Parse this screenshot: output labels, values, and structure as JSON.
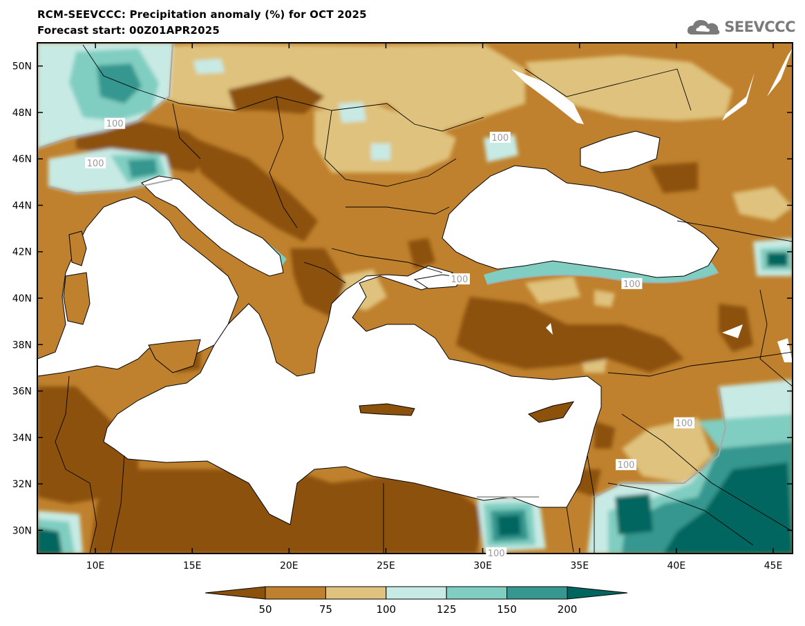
{
  "header": {
    "title_line1": "RCM-SEEVCCC: Precipitation anomaly (%) for OCT 2025",
    "title_line2": "Forecast start: 00Z01APR2025"
  },
  "logo": {
    "text": "SEEVCCC",
    "icon": "cloud-icon",
    "color": "#7a7a7a"
  },
  "map": {
    "lon_range": [
      7,
      46
    ],
    "lat_range": [
      29,
      51
    ],
    "lon_ticks": [
      {
        "value": 10,
        "label": "10E"
      },
      {
        "value": 15,
        "label": "15E"
      },
      {
        "value": 20,
        "label": "20E"
      },
      {
        "value": 25,
        "label": "25E"
      },
      {
        "value": 30,
        "label": "30E"
      },
      {
        "value": 35,
        "label": "35E"
      },
      {
        "value": 40,
        "label": "40E"
      },
      {
        "value": 45,
        "label": "45E"
      }
    ],
    "lat_ticks": [
      {
        "value": 30,
        "label": "30N"
      },
      {
        "value": 32,
        "label": "32N"
      },
      {
        "value": 34,
        "label": "34N"
      },
      {
        "value": 36,
        "label": "36N"
      },
      {
        "value": 38,
        "label": "38N"
      },
      {
        "value": 40,
        "label": "40N"
      },
      {
        "value": 42,
        "label": "42N"
      },
      {
        "value": 44,
        "label": "44N"
      },
      {
        "value": 46,
        "label": "46N"
      },
      {
        "value": 48,
        "label": "48N"
      },
      {
        "value": 50,
        "label": "50N"
      }
    ],
    "contour_labels": [
      {
        "lon": 11.0,
        "lat": 47.5,
        "label": "100"
      },
      {
        "lon": 10.0,
        "lat": 45.8,
        "label": "100"
      },
      {
        "lon": 30.9,
        "lat": 46.9,
        "label": "100"
      },
      {
        "lon": 28.8,
        "lat": 40.8,
        "label": "100"
      },
      {
        "lon": 37.7,
        "lat": 40.6,
        "label": "100"
      },
      {
        "lon": 40.4,
        "lat": 34.6,
        "label": "100"
      },
      {
        "lon": 37.4,
        "lat": 32.8,
        "label": "100"
      },
      {
        "lon": 30.7,
        "lat": 29.0,
        "label": "100"
      }
    ],
    "colors": {
      "very_dry": "#8c510a",
      "dry": "#bf812d",
      "moderately_dry": "#dfc27d",
      "moderately_wet": "#c7eae5",
      "wet": "#80cdc1",
      "very_wet": "#35978f",
      "extreme_wet": "#01665e",
      "sea": "#ffffff"
    }
  },
  "colorbar": {
    "labels": [
      "50",
      "75",
      "100",
      "125",
      "150",
      "200"
    ],
    "colors": [
      "#8c510a",
      "#bf812d",
      "#dfc27d",
      "#c7eae5",
      "#80cdc1",
      "#35978f",
      "#01665e"
    ]
  }
}
